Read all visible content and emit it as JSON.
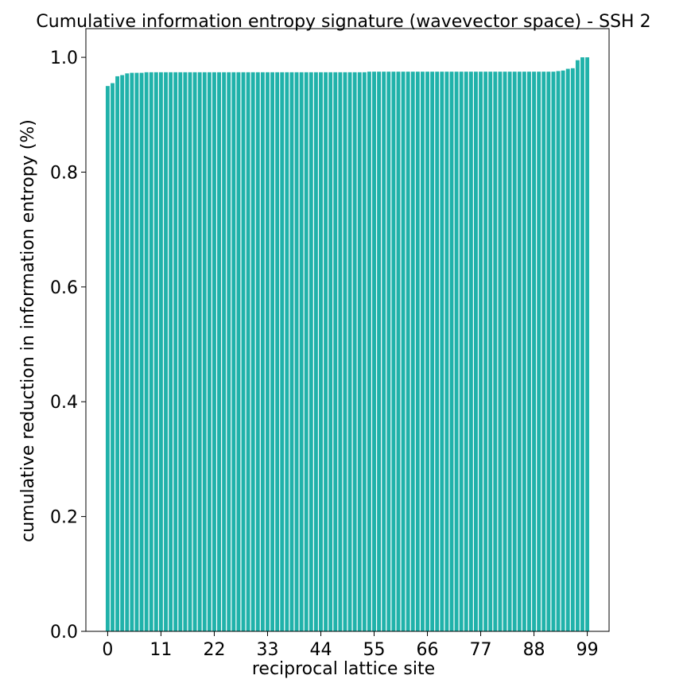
{
  "chart_data": {
    "type": "bar",
    "title": "Cumulative information entropy signature (wavevector space) - SSH 2",
    "xlabel": "reciprocal lattice site",
    "ylabel": "cumulative reduction in information entropy (%)",
    "x": [
      0,
      1,
      2,
      3,
      4,
      5,
      6,
      7,
      8,
      9,
      10,
      11,
      12,
      13,
      14,
      15,
      16,
      17,
      18,
      19,
      20,
      21,
      22,
      23,
      24,
      25,
      26,
      27,
      28,
      29,
      30,
      31,
      32,
      33,
      34,
      35,
      36,
      37,
      38,
      39,
      40,
      41,
      42,
      43,
      44,
      45,
      46,
      47,
      48,
      49,
      50,
      51,
      52,
      53,
      54,
      55,
      56,
      57,
      58,
      59,
      60,
      61,
      62,
      63,
      64,
      65,
      66,
      67,
      68,
      69,
      70,
      71,
      72,
      73,
      74,
      75,
      76,
      77,
      78,
      79,
      80,
      81,
      82,
      83,
      84,
      85,
      86,
      87,
      88,
      89,
      90,
      91,
      92,
      93,
      94,
      95,
      96,
      97,
      98,
      99
    ],
    "values": [
      0.95,
      0.955,
      0.967,
      0.969,
      0.972,
      0.973,
      0.973,
      0.973,
      0.974,
      0.974,
      0.974,
      0.974,
      0.974,
      0.974,
      0.974,
      0.974,
      0.974,
      0.974,
      0.974,
      0.974,
      0.974,
      0.974,
      0.974,
      0.974,
      0.974,
      0.974,
      0.974,
      0.974,
      0.974,
      0.974,
      0.974,
      0.974,
      0.974,
      0.974,
      0.974,
      0.974,
      0.974,
      0.974,
      0.974,
      0.974,
      0.974,
      0.974,
      0.974,
      0.974,
      0.974,
      0.974,
      0.974,
      0.974,
      0.974,
      0.974,
      0.974,
      0.974,
      0.974,
      0.974,
      0.975,
      0.975,
      0.975,
      0.975,
      0.975,
      0.975,
      0.975,
      0.975,
      0.975,
      0.975,
      0.975,
      0.975,
      0.975,
      0.975,
      0.975,
      0.975,
      0.975,
      0.975,
      0.975,
      0.975,
      0.975,
      0.975,
      0.975,
      0.975,
      0.975,
      0.975,
      0.975,
      0.975,
      0.975,
      0.975,
      0.975,
      0.975,
      0.975,
      0.975,
      0.975,
      0.975,
      0.975,
      0.975,
      0.975,
      0.976,
      0.977,
      0.98,
      0.981,
      0.995,
      1.0,
      1.0
    ],
    "xticks": [
      0,
      11,
      22,
      33,
      44,
      55,
      66,
      77,
      88,
      99
    ],
    "yticks": [
      0.0,
      0.2,
      0.4,
      0.6,
      0.8,
      1.0
    ],
    "ytick_labels": [
      "0.0",
      "0.2",
      "0.4",
      "0.6",
      "0.8",
      "1.0"
    ],
    "xlim": [
      -4.5,
      103.5
    ],
    "ylim": [
      0,
      1.05
    ],
    "bar_color": "#20b2aa",
    "grid": false,
    "legend": "none"
  }
}
